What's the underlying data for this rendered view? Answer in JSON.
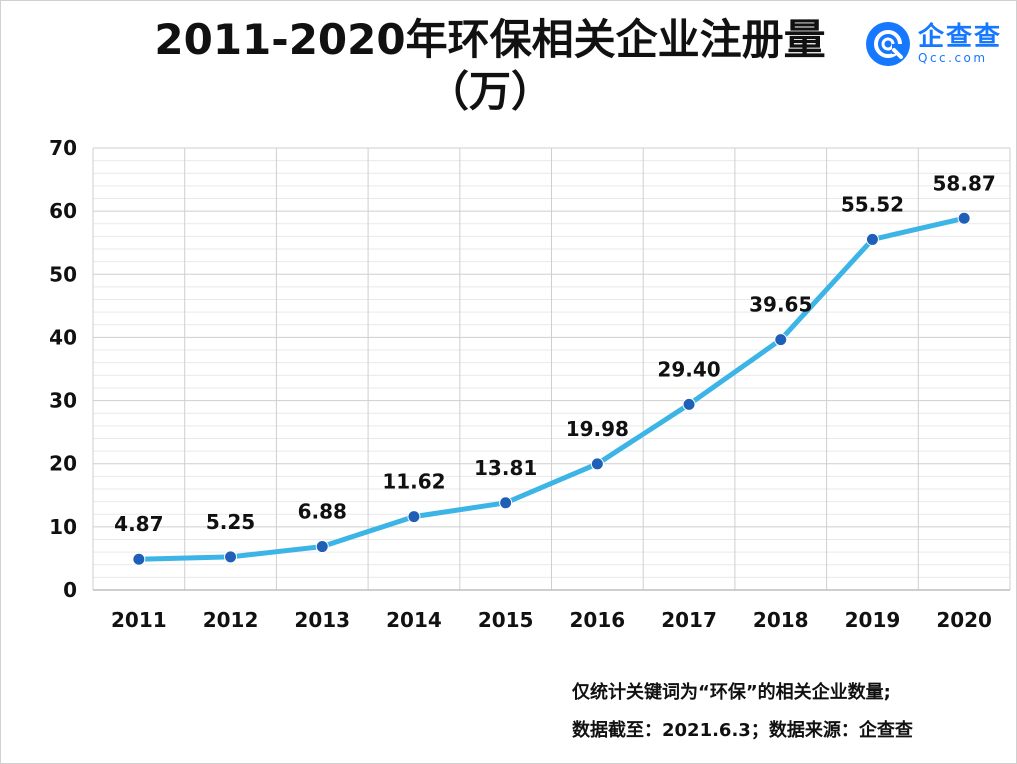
{
  "header": {
    "title_line1": "2011-2020年环保相关企业注册量",
    "title_line2": "（万）"
  },
  "logo": {
    "name": "企查查",
    "domain": "Qcc.com",
    "icon": "qcc-logo-icon",
    "color": "#1677ff"
  },
  "chart_data": {
    "type": "line",
    "title": "2011-2020年环保相关企业注册量（万）",
    "xlabel": "",
    "ylabel": "",
    "categories": [
      "2011",
      "2012",
      "2013",
      "2014",
      "2015",
      "2016",
      "2017",
      "2018",
      "2019",
      "2020"
    ],
    "series": [
      {
        "values": [
          4.87,
          5.25,
          6.88,
          11.62,
          13.81,
          19.98,
          29.4,
          39.65,
          55.52,
          58.87
        ],
        "labels": [
          "4.87",
          "5.25",
          "6.88",
          "11.62",
          "13.81",
          "19.98",
          "29.40",
          "39.65",
          "55.52",
          "58.87"
        ]
      }
    ],
    "ylim": [
      0,
      70
    ],
    "yticks": [
      "0",
      "10",
      "20",
      "30",
      "40",
      "50",
      "60",
      "70"
    ],
    "grid": true,
    "legend": "none",
    "line_color": "#3cb4e6",
    "marker_color": "#1f5fb8"
  },
  "notes": {
    "line1": "仅统计关键词为“环保”的相关企业数量;",
    "line2": "数据截至：2021.6.3；数据来源：企查查"
  }
}
